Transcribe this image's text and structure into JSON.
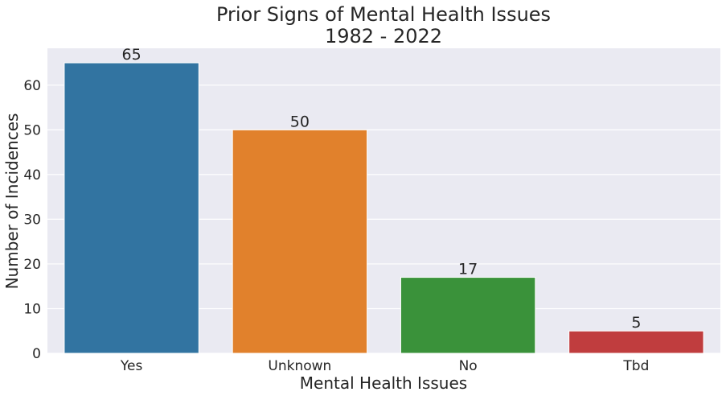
{
  "chart_data": {
    "type": "bar",
    "title": "Prior Signs of Mental Health Issues",
    "subtitle": "1982 - 2022",
    "xlabel": "Mental Health Issues",
    "ylabel": "Number of Incidences",
    "categories": [
      "Yes",
      "Unknown",
      "No",
      "Tbd"
    ],
    "values": [
      65,
      50,
      17,
      5
    ],
    "data_labels": [
      "65",
      "50",
      "17",
      "5"
    ],
    "colors": [
      "#3274a1",
      "#e1812c",
      "#3a923a",
      "#c03d3e"
    ],
    "ylim": [
      0,
      68.25
    ],
    "yticks": [
      0,
      10,
      20,
      30,
      40,
      50,
      60
    ],
    "grid": true,
    "legend": "none",
    "background": "#eaeaf2"
  }
}
